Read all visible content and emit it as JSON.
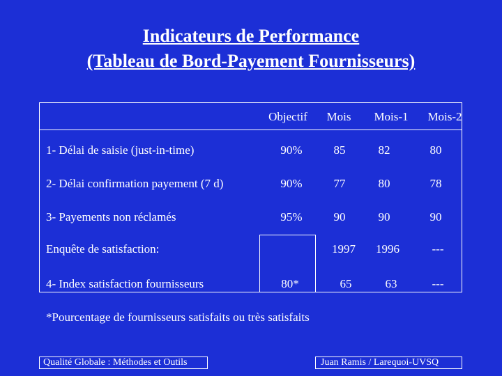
{
  "title": {
    "line1": "Indicateurs de Performance",
    "line2": "(Tableau de Bord-Payement Fournisseurs)"
  },
  "table": {
    "headers": [
      "Objectif",
      "Mois",
      "Mois-1",
      "Mois-2"
    ],
    "rows": [
      {
        "label": "1- Délai de saisie (just-in-time)",
        "objectif": "90%",
        "mois": "85",
        "mois1": "82",
        "mois2": "80"
      },
      {
        "label": "2- Délai confirmation payement (7 d)",
        "objectif": "90%",
        "mois": "77",
        "mois1": "80",
        "mois2": "78"
      },
      {
        "label": "3- Payements non réclamés",
        "objectif": "95%",
        "mois": "90",
        "mois1": "90",
        "mois2": "90"
      },
      {
        "label": "Enquête de satisfaction:",
        "objectif": "",
        "mois": "1997",
        "mois1": "1996",
        "mois2": "---"
      },
      {
        "label": "4- Index satisfaction fournisseurs",
        "objectif": "80*",
        "mois": "65",
        "mois1": "63",
        "mois2": "---"
      }
    ]
  },
  "footnote": "*Pourcentage de fournisseurs satisfaits ou très satisfaits",
  "footer": {
    "left": "Qualité Globale : Méthodes et Outils",
    "right": "Juan Ramis / Larequoi-UVSQ"
  }
}
